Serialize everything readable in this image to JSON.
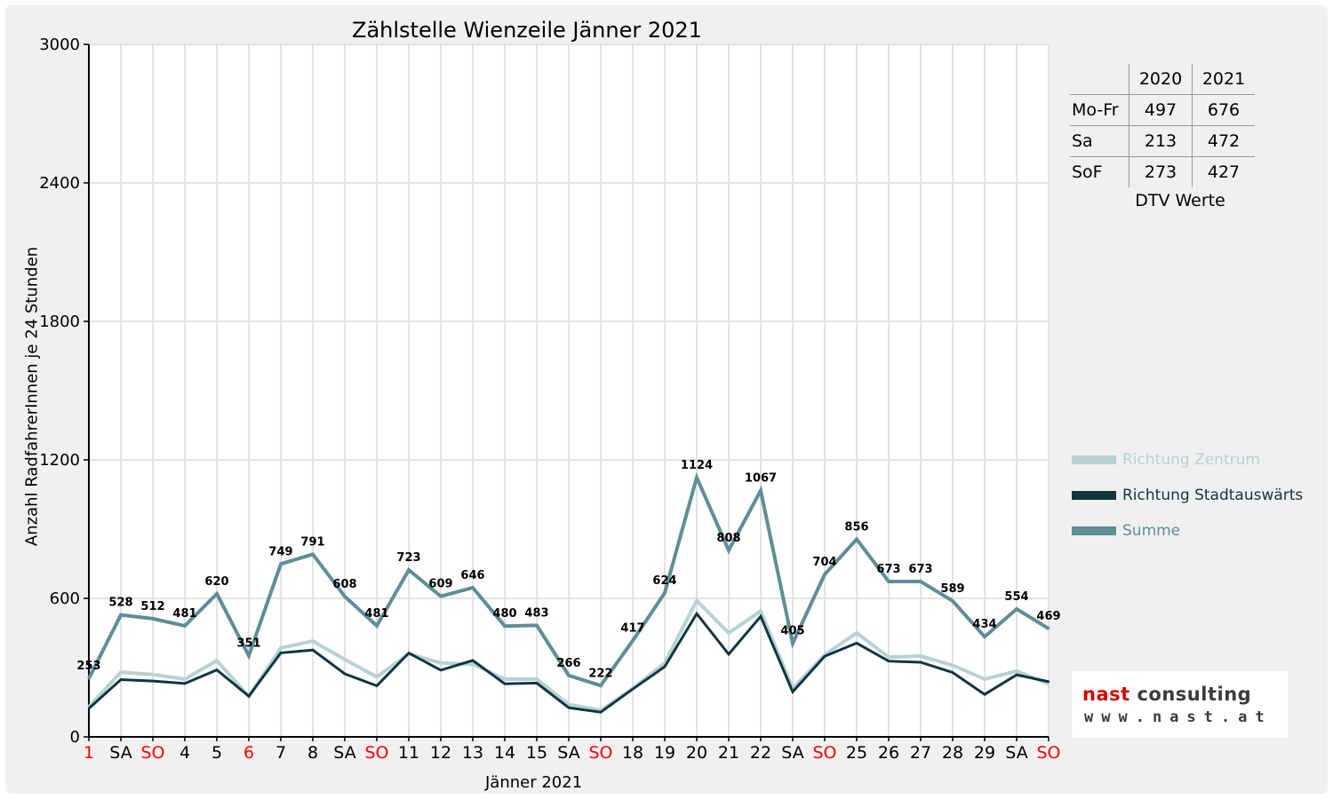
{
  "chart_data": {
    "type": "line",
    "title": "Zählstelle Wienzeile Jänner 2021",
    "xlabel": "Jänner 2021",
    "ylabel": "Anzahl RadfahrerInnen je 24 Stunden",
    "ylim": [
      0,
      3000
    ],
    "yticks": [
      0,
      600,
      1200,
      1800,
      2400,
      3000
    ],
    "grid": true,
    "legend_position": "right",
    "categories": [
      "1",
      "SA",
      "SO",
      "4",
      "5",
      "6",
      "7",
      "8",
      "SA",
      "SO",
      "11",
      "12",
      "13",
      "14",
      "15",
      "SA",
      "SO",
      "18",
      "19",
      "20",
      "21",
      "22",
      "SA",
      "SO",
      "25",
      "26",
      "27",
      "28",
      "29",
      "SA",
      "SO"
    ],
    "red_categories": [
      0,
      2,
      5,
      9,
      16,
      23,
      30
    ],
    "series": [
      {
        "name": "Richtung Zentrum",
        "color": "#b8d1d3",
        "values": [
          130,
          280,
          270,
          250,
          330,
          175,
          385,
          415,
          335,
          260,
          360,
          320,
          315,
          250,
          250,
          140,
          115,
          210,
          320,
          590,
          450,
          545,
          210,
          355,
          450,
          345,
          350,
          310,
          250,
          285,
          230
        ]
      },
      {
        "name": "Richtung Stadtauswärts",
        "color": "#0e3740",
        "values": [
          123,
          248,
          242,
          231,
          290,
          176,
          364,
          376,
          273,
          221,
          363,
          289,
          331,
          230,
          233,
          126,
          107,
          207,
          304,
          534,
          358,
          522,
          195,
          349,
          406,
          328,
          323,
          279,
          184,
          269,
          239
        ]
      },
      {
        "name": "Summe",
        "color": "#5e8e96",
        "values": [
          253,
          528,
          512,
          481,
          620,
          351,
          749,
          791,
          608,
          481,
          723,
          609,
          646,
          480,
          483,
          266,
          222,
          417,
          624,
          1124,
          808,
          1067,
          405,
          704,
          856,
          673,
          673,
          589,
          434,
          554,
          469
        ]
      }
    ],
    "data_labels": [
      "253",
      "528",
      "512",
      "481",
      "620",
      "351",
      "749",
      "791",
      "608",
      "481",
      "723",
      "609",
      "646",
      "480",
      "483",
      "266",
      "222",
      "417",
      "624",
      "1124",
      "808",
      "1067",
      "405",
      "704",
      "856",
      "673",
      "673",
      "589",
      "434",
      "554",
      "469"
    ]
  },
  "dtv_table": {
    "headers": [
      "2020",
      "2021"
    ],
    "rows": [
      {
        "label": "Mo-Fr",
        "v2020": "497",
        "v2021": "676"
      },
      {
        "label": "Sa",
        "v2020": "213",
        "v2021": "472"
      },
      {
        "label": "SoF",
        "v2020": "273",
        "v2021": "427"
      }
    ],
    "caption": "DTV Werte"
  },
  "logo": {
    "brand_a": "nast",
    "brand_b": " consulting",
    "url": "www.nast.at"
  },
  "colors": {
    "grid": "#e3e3e3",
    "axis": "#000000",
    "holiday": "#ff0000",
    "frame": "#f0f0f0"
  }
}
